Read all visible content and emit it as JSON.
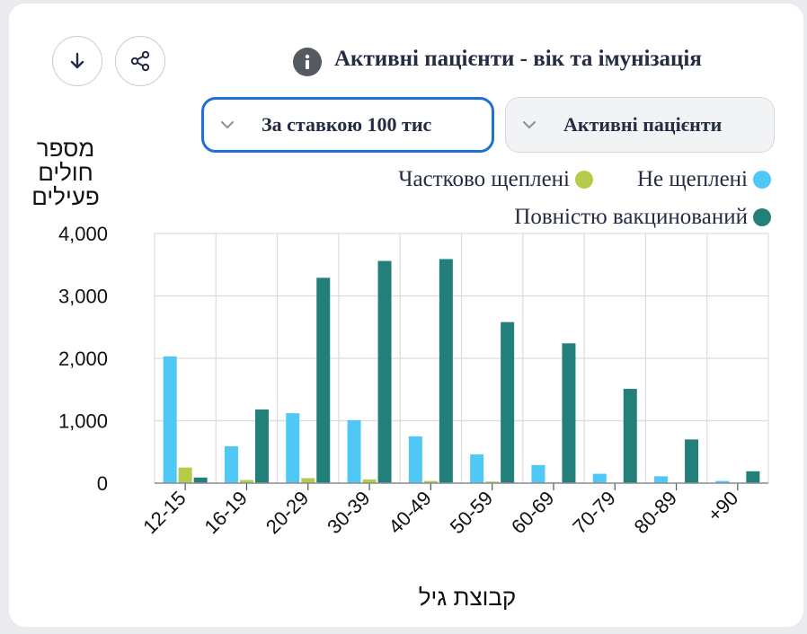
{
  "header": {
    "download_icon": "arrow-down-icon",
    "share_icon": "share-icon",
    "info_icon": "info-icon",
    "title": "Активні пацієнти - вік та імунізація"
  },
  "controls": {
    "rate_select": {
      "value": "За ставкою 100 тис",
      "icon": "chevron-down-icon"
    },
    "population_select": {
      "value": "Активні пацієнти",
      "icon": "chevron-down-icon"
    }
  },
  "colors": {
    "partial": "#b5cc4a",
    "unvaccinated": "#4fc8f5",
    "full": "#237f7a",
    "grid": "#dcdcdc",
    "accent": "#1f6fd6"
  },
  "chart_data": {
    "type": "bar",
    "ylabel_lines": [
      "מספר",
      "חולים",
      "פעילים"
    ],
    "xlabel": "קבוצת גיל",
    "ylim": [
      0,
      4000
    ],
    "yticks": [
      0,
      1000,
      2000,
      3000,
      4000
    ],
    "ytick_labels": [
      "0",
      "1,000",
      "2,000",
      "3,000",
      "4,000"
    ],
    "grid": true,
    "legend_position": "top-right",
    "categories": [
      "12-15",
      "16-19",
      "20-29",
      "30-39",
      "40-49",
      "50-59",
      "60-69",
      "70-79",
      "80-89",
      "+90"
    ],
    "series": [
      {
        "name": "Не щеплені",
        "color_key": "unvaccinated",
        "values": [
          2030,
          590,
          1120,
          1010,
          750,
          460,
          290,
          150,
          110,
          35
        ]
      },
      {
        "name": "Частково щеплені",
        "color_key": "partial",
        "values": [
          250,
          50,
          80,
          60,
          35,
          25,
          15,
          8,
          5,
          2
        ]
      },
      {
        "name": "Повністю вакцинований",
        "color_key": "full",
        "values": [
          90,
          1180,
          3290,
          3560,
          3590,
          2580,
          2240,
          1510,
          700,
          190
        ]
      }
    ]
  }
}
